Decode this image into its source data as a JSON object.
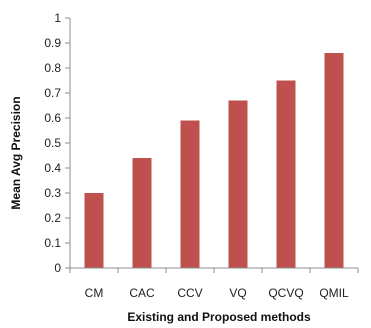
{
  "chart_data": {
    "type": "bar",
    "title": "",
    "xlabel": "Existing and Proposed methods",
    "ylabel": "Mean Avg Precision",
    "categories": [
      "CM",
      "CAC",
      "CCV",
      "VQ",
      "QCVQ",
      "QMIL"
    ],
    "values": [
      0.3,
      0.44,
      0.59,
      0.67,
      0.75,
      0.86
    ],
    "ylim": [
      0,
      1
    ],
    "yticks": [
      "0",
      "0.1",
      "0.2",
      "0.3",
      "0.4",
      "0.5",
      "0.6",
      "0.7",
      "0.8",
      "0.9",
      "1"
    ],
    "grid": false,
    "legend": "none",
    "colors": {
      "bar": "#c0504d",
      "axis": "#8c8c8c"
    }
  }
}
